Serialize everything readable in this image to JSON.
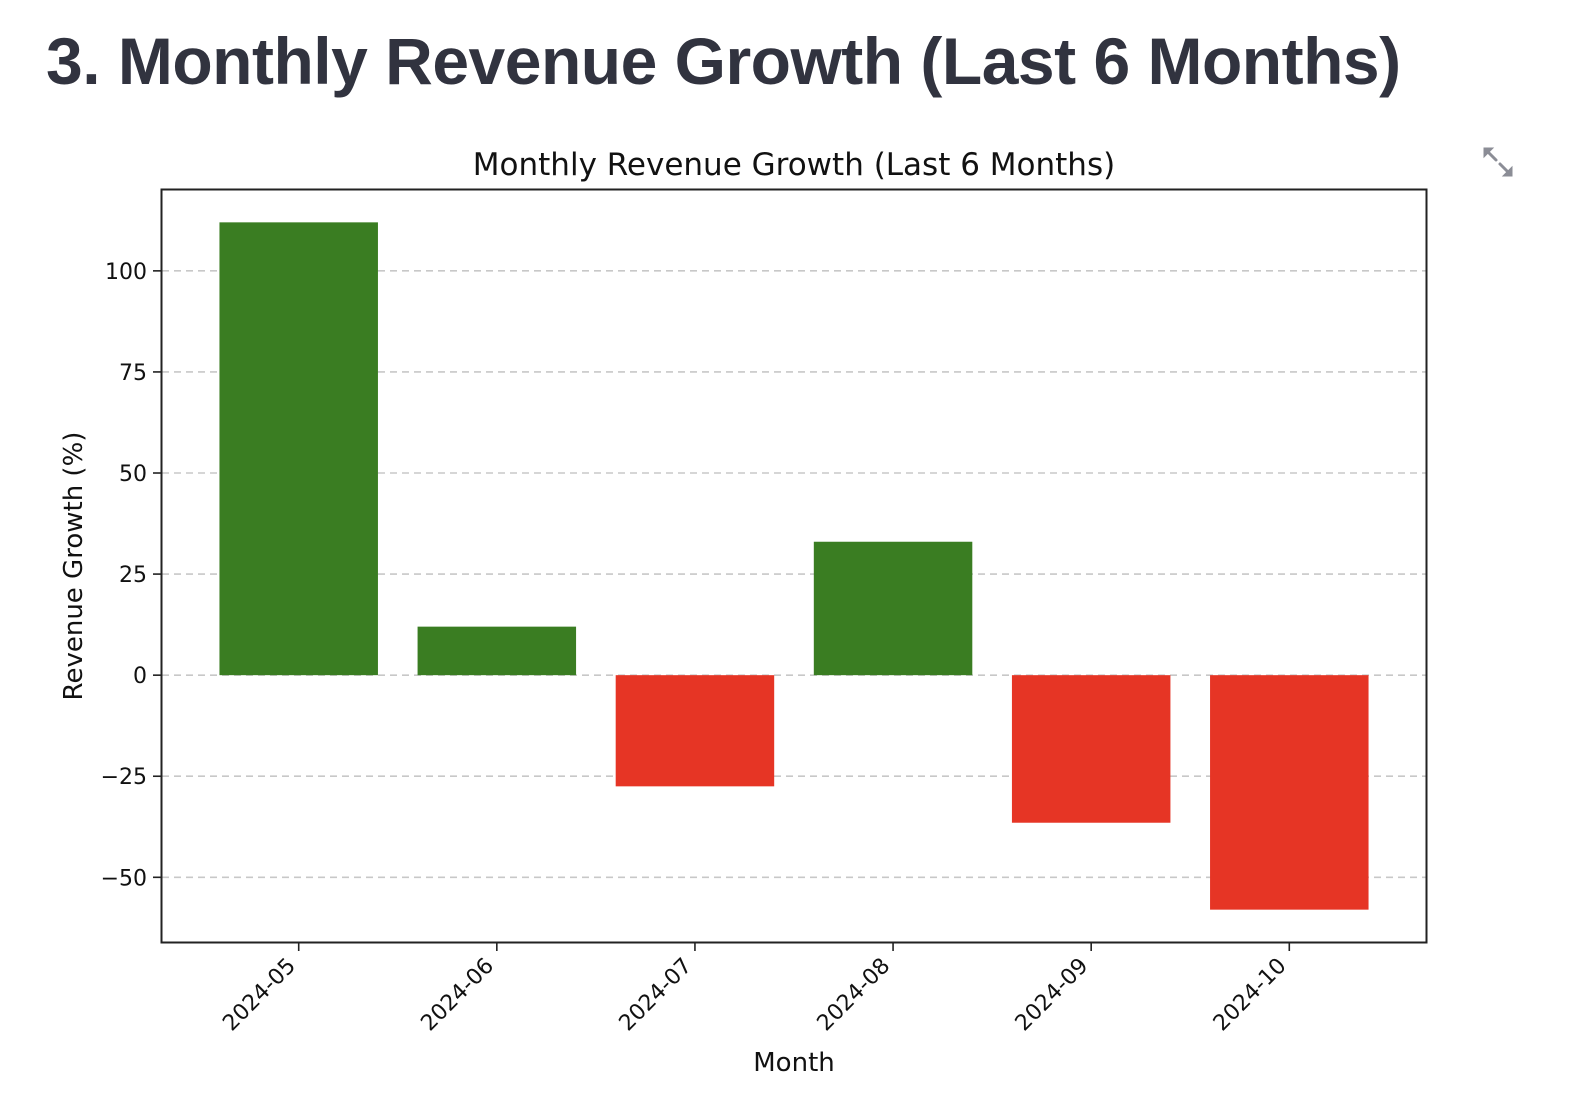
{
  "page": {
    "heading": "3. Monthly Revenue Growth (Last 6 Months)",
    "expand_icon": "expand-arrows-icon"
  },
  "colors": {
    "positive": "#3a7d22",
    "negative": "#e63525",
    "heading": "#31333f",
    "grid": "#c8c8c8",
    "icon": "#8b8d96"
  },
  "chart_data": {
    "type": "bar",
    "title": "Monthly Revenue Growth (Last 6 Months)",
    "xlabel": "Month",
    "ylabel": "Revenue Growth (%)",
    "categories": [
      "2024-05",
      "2024-06",
      "2024-07",
      "2024-08",
      "2024-09",
      "2024-10"
    ],
    "values": [
      112,
      12,
      -27.5,
      33,
      -36.5,
      -58
    ],
    "ylim": [
      -66,
      120
    ],
    "yticks": [
      -50,
      -25,
      0,
      25,
      50,
      75,
      100
    ],
    "ytick_labels": [
      "−50",
      "−25",
      "0",
      "25",
      "50",
      "75",
      "100"
    ],
    "grid": "horizontal dashed",
    "legend": "none",
    "bar_color_rule": "green for positive, red for negative"
  }
}
